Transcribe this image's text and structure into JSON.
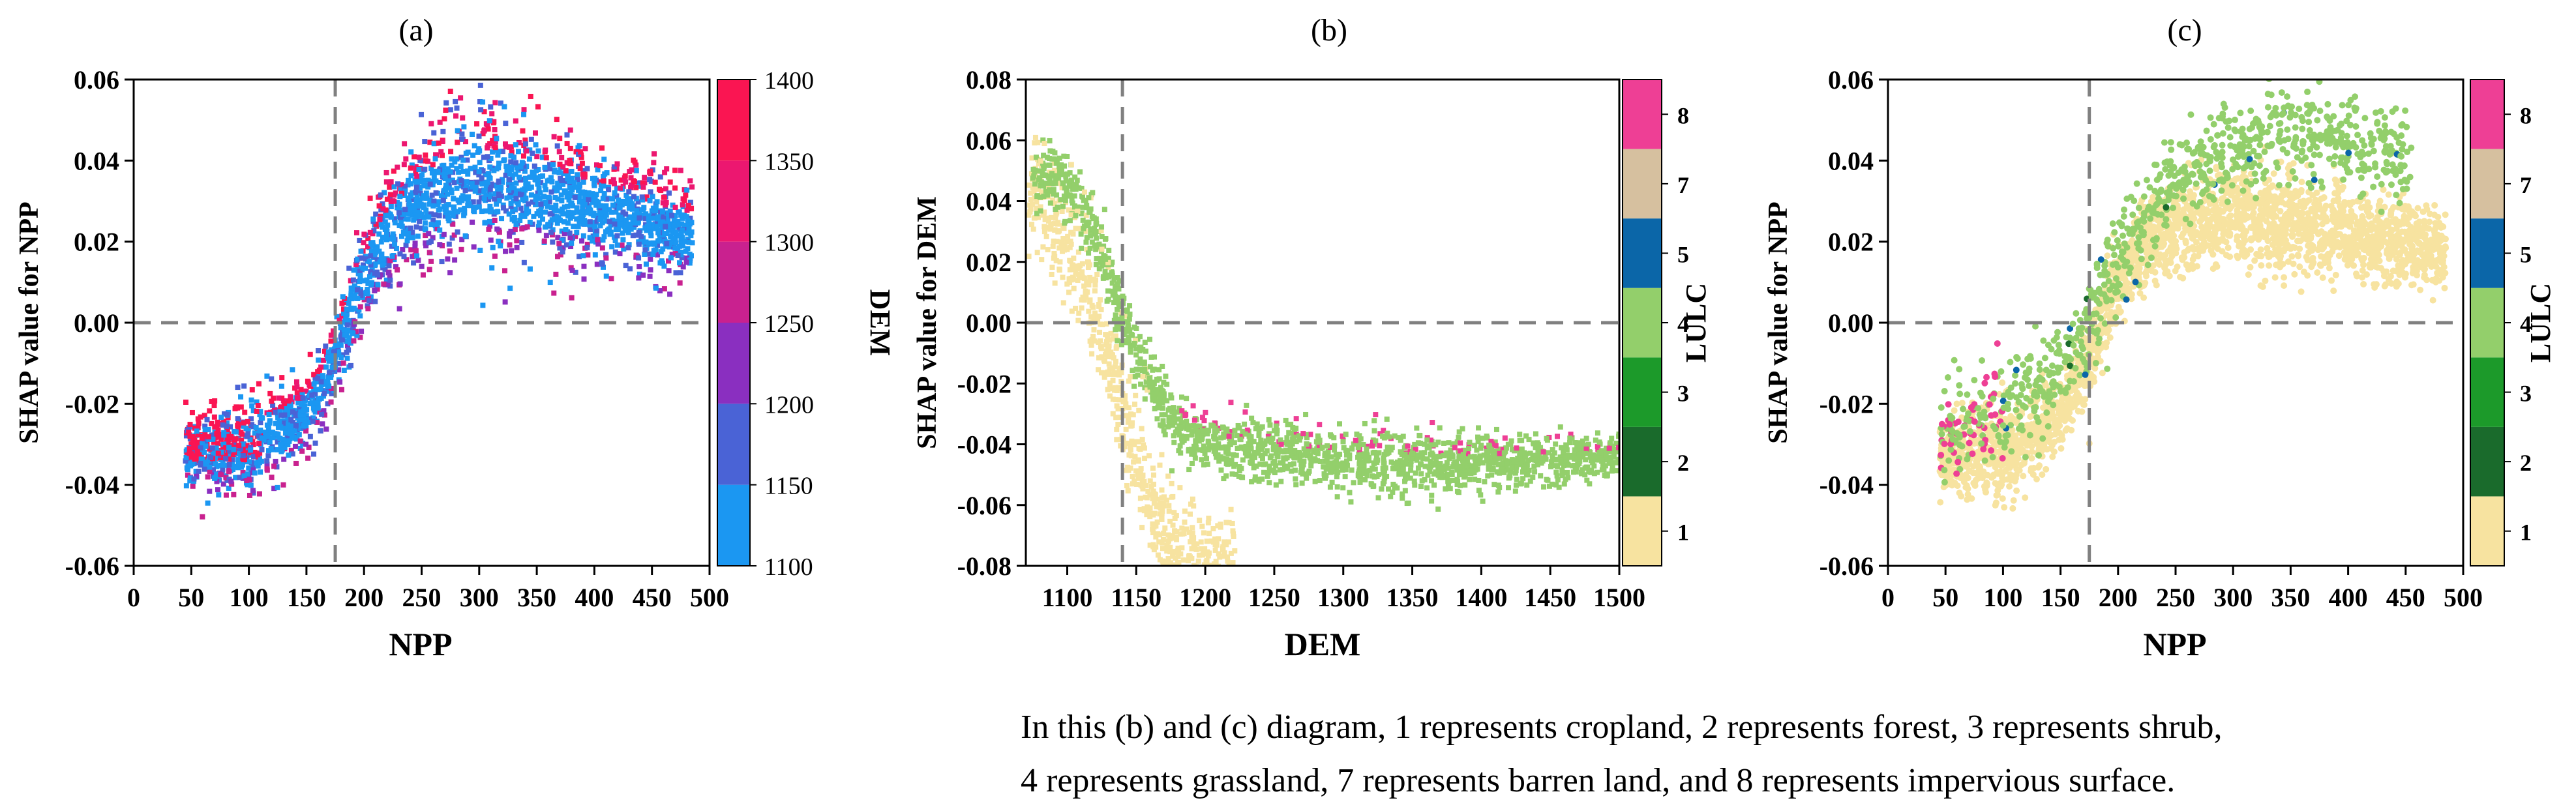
{
  "colors": {
    "axis": "#000000",
    "dashed_line": "#808080",
    "npp_cmap": [
      "#1b97f2",
      "#4a63d6",
      "#8a2fc0",
      "#c9218f",
      "#ec1770",
      "#fa1552"
    ],
    "lulc": {
      "1": "#f7e3a0",
      "2": "#1a6b2c",
      "3": "#1c9a2a",
      "4": "#93cf6b",
      "5": "#0b66a8",
      "7": "#d6c09f",
      "8": "#ee3f95"
    }
  },
  "note": {
    "line1": "In this (b) and (c) diagram, 1 represents cropland, 2 represents forest, 3 represents shrub,",
    "line2": "4 represents grassland, 7 represents barren land, and 8 represents impervious surface."
  },
  "chart_data": [
    {
      "id": "a",
      "type": "scatter",
      "title": "(a)",
      "xlabel": "NPP",
      "ylabel": "SHAP value for NPP",
      "xlim": [
        0,
        500
      ],
      "ylim": [
        -0.06,
        0.06
      ],
      "xticks": [
        0,
        50,
        100,
        150,
        200,
        250,
        300,
        350,
        400,
        450,
        500
      ],
      "yticks": [
        -0.06,
        -0.04,
        -0.02,
        0.0,
        0.02,
        0.04,
        0.06
      ],
      "ytick_labels": [
        "-0.06",
        "-0.04",
        "-0.02",
        "0.00",
        "0.02",
        "0.04",
        "0.06"
      ],
      "hline": 0.0,
      "vline": 175,
      "colorbar": {
        "label": "DEM",
        "ticks": [
          1100,
          1150,
          1200,
          1250,
          1300,
          1350,
          1400
        ],
        "range": [
          1100,
          1400
        ],
        "bands": [
          {
            "from": 1100,
            "to": 1150,
            "color": "#1b97f2"
          },
          {
            "from": 1150,
            "to": 1200,
            "color": "#4a63d6"
          },
          {
            "from": 1200,
            "to": 1250,
            "color": "#8a2fc0"
          },
          {
            "from": 1250,
            "to": 1300,
            "color": "#c9218f"
          },
          {
            "from": 1300,
            "to": 1350,
            "color": "#ec1770"
          },
          {
            "from": 1350,
            "to": 1400,
            "color": "#fa1552"
          }
        ]
      },
      "trend": [
        [
          50,
          -0.032
        ],
        [
          75,
          -0.031
        ],
        [
          100,
          -0.03
        ],
        [
          125,
          -0.027
        ],
        [
          150,
          -0.022
        ],
        [
          170,
          -0.012
        ],
        [
          185,
          0.0
        ],
        [
          200,
          0.012
        ],
        [
          220,
          0.022
        ],
        [
          250,
          0.03
        ],
        [
          280,
          0.034
        ],
        [
          310,
          0.035
        ],
        [
          350,
          0.032
        ],
        [
          400,
          0.028
        ],
        [
          440,
          0.025
        ],
        [
          480,
          0.022
        ]
      ],
      "trend_spread": [
        [
          50,
          0.01
        ],
        [
          100,
          0.014
        ],
        [
          150,
          0.01
        ],
        [
          200,
          0.012
        ],
        [
          250,
          0.018
        ],
        [
          300,
          0.02
        ],
        [
          400,
          0.016
        ],
        [
          480,
          0.012
        ]
      ],
      "point_count": 2600,
      "point_style": "square"
    },
    {
      "id": "b",
      "type": "scatter",
      "title": "(b)",
      "xlabel": "DEM",
      "ylabel": "SHAP value for DEM",
      "xlim": [
        1070,
        1500
      ],
      "ylim": [
        -0.08,
        0.08
      ],
      "xticks": [
        1100,
        1150,
        1200,
        1250,
        1300,
        1350,
        1400,
        1450,
        1500
      ],
      "yticks": [
        -0.08,
        -0.06,
        -0.04,
        -0.02,
        0.0,
        0.02,
        0.04,
        0.06,
        0.08
      ],
      "ytick_labels": [
        "-0.08",
        "-0.06",
        "-0.04",
        "-0.02",
        "0.00",
        "0.02",
        "0.04",
        "0.06",
        "0.08"
      ],
      "hline": 0.0,
      "vline": 1140,
      "colorbar": {
        "label": "LULC",
        "ticks": [
          "1",
          "2",
          "3",
          "4",
          "5",
          "7",
          "8"
        ],
        "bands": [
          {
            "label": "1",
            "color": "#f7e3a0"
          },
          {
            "label": "2",
            "color": "#1a6b2c"
          },
          {
            "label": "3",
            "color": "#1c9a2a"
          },
          {
            "label": "4",
            "color": "#93cf6b"
          },
          {
            "label": "5",
            "color": "#0b66a8"
          },
          {
            "label": "7",
            "color": "#d6c09f"
          },
          {
            "label": "8",
            "color": "#ee3f95"
          }
        ]
      },
      "trend": [
        [
          1075,
          0.05
        ],
        [
          1100,
          0.045
        ],
        [
          1120,
          0.03
        ],
        [
          1140,
          0.002
        ],
        [
          1160,
          -0.02
        ],
        [
          1180,
          -0.034
        ],
        [
          1200,
          -0.04
        ],
        [
          1250,
          -0.043
        ],
        [
          1300,
          -0.045
        ],
        [
          1350,
          -0.046
        ],
        [
          1400,
          -0.046
        ],
        [
          1450,
          -0.045
        ],
        [
          1500,
          -0.044
        ]
      ],
      "trend_spread": [
        [
          1075,
          0.012
        ],
        [
          1140,
          0.012
        ],
        [
          1200,
          0.012
        ],
        [
          1300,
          0.012
        ],
        [
          1500,
          0.008
        ]
      ],
      "cropland_branch": [
        [
          1075,
          0.04
        ],
        [
          1100,
          0.025
        ],
        [
          1120,
          0.005
        ],
        [
          1140,
          -0.03
        ],
        [
          1160,
          -0.06
        ],
        [
          1180,
          -0.075
        ],
        [
          1210,
          -0.08
        ]
      ],
      "point_count": 2400,
      "point_style": "square"
    },
    {
      "id": "c",
      "type": "scatter",
      "title": "(c)",
      "xlabel": "NPP",
      "ylabel": "SHAP value for NPP",
      "xlim": [
        0,
        500
      ],
      "ylim": [
        -0.06,
        0.06
      ],
      "xticks": [
        0,
        50,
        100,
        150,
        200,
        250,
        300,
        350,
        400,
        450,
        500
      ],
      "yticks": [
        -0.06,
        -0.04,
        -0.02,
        0.0,
        0.02,
        0.04,
        0.06
      ],
      "ytick_labels": [
        "-0.06",
        "-0.04",
        "-0.02",
        "0.00",
        "0.02",
        "0.04",
        "0.06"
      ],
      "hline": 0.0,
      "vline": 175,
      "colorbar": {
        "label": "LULC",
        "ticks": [
          "1",
          "2",
          "3",
          "4",
          "5",
          "7",
          "8"
        ],
        "bands": [
          {
            "label": "1",
            "color": "#f7e3a0"
          },
          {
            "label": "2",
            "color": "#1a6b2c"
          },
          {
            "label": "3",
            "color": "#1c9a2a"
          },
          {
            "label": "4",
            "color": "#93cf6b"
          },
          {
            "label": "5",
            "color": "#0b66a8"
          },
          {
            "label": "7",
            "color": "#d6c09f"
          },
          {
            "label": "8",
            "color": "#ee3f95"
          }
        ]
      },
      "trend": [
        [
          50,
          -0.034
        ],
        [
          75,
          -0.033
        ],
        [
          100,
          -0.032
        ],
        [
          125,
          -0.028
        ],
        [
          150,
          -0.022
        ],
        [
          170,
          -0.012
        ],
        [
          185,
          0.0
        ],
        [
          200,
          0.01
        ],
        [
          220,
          0.018
        ],
        [
          250,
          0.024
        ],
        [
          300,
          0.027
        ],
        [
          350,
          0.025
        ],
        [
          400,
          0.022
        ],
        [
          450,
          0.02
        ],
        [
          480,
          0.018
        ]
      ],
      "trend_spread": [
        [
          50,
          0.01
        ],
        [
          100,
          0.014
        ],
        [
          150,
          0.01
        ],
        [
          200,
          0.01
        ],
        [
          300,
          0.014
        ],
        [
          480,
          0.01
        ]
      ],
      "grass_band": [
        [
          50,
          -0.028
        ],
        [
          100,
          -0.022
        ],
        [
          150,
          -0.012
        ],
        [
          180,
          0.003
        ],
        [
          210,
          0.02
        ],
        [
          250,
          0.035
        ],
        [
          300,
          0.043
        ],
        [
          350,
          0.047
        ],
        [
          400,
          0.045
        ],
        [
          450,
          0.042
        ]
      ],
      "point_count": 2600,
      "point_style": "circle"
    }
  ]
}
